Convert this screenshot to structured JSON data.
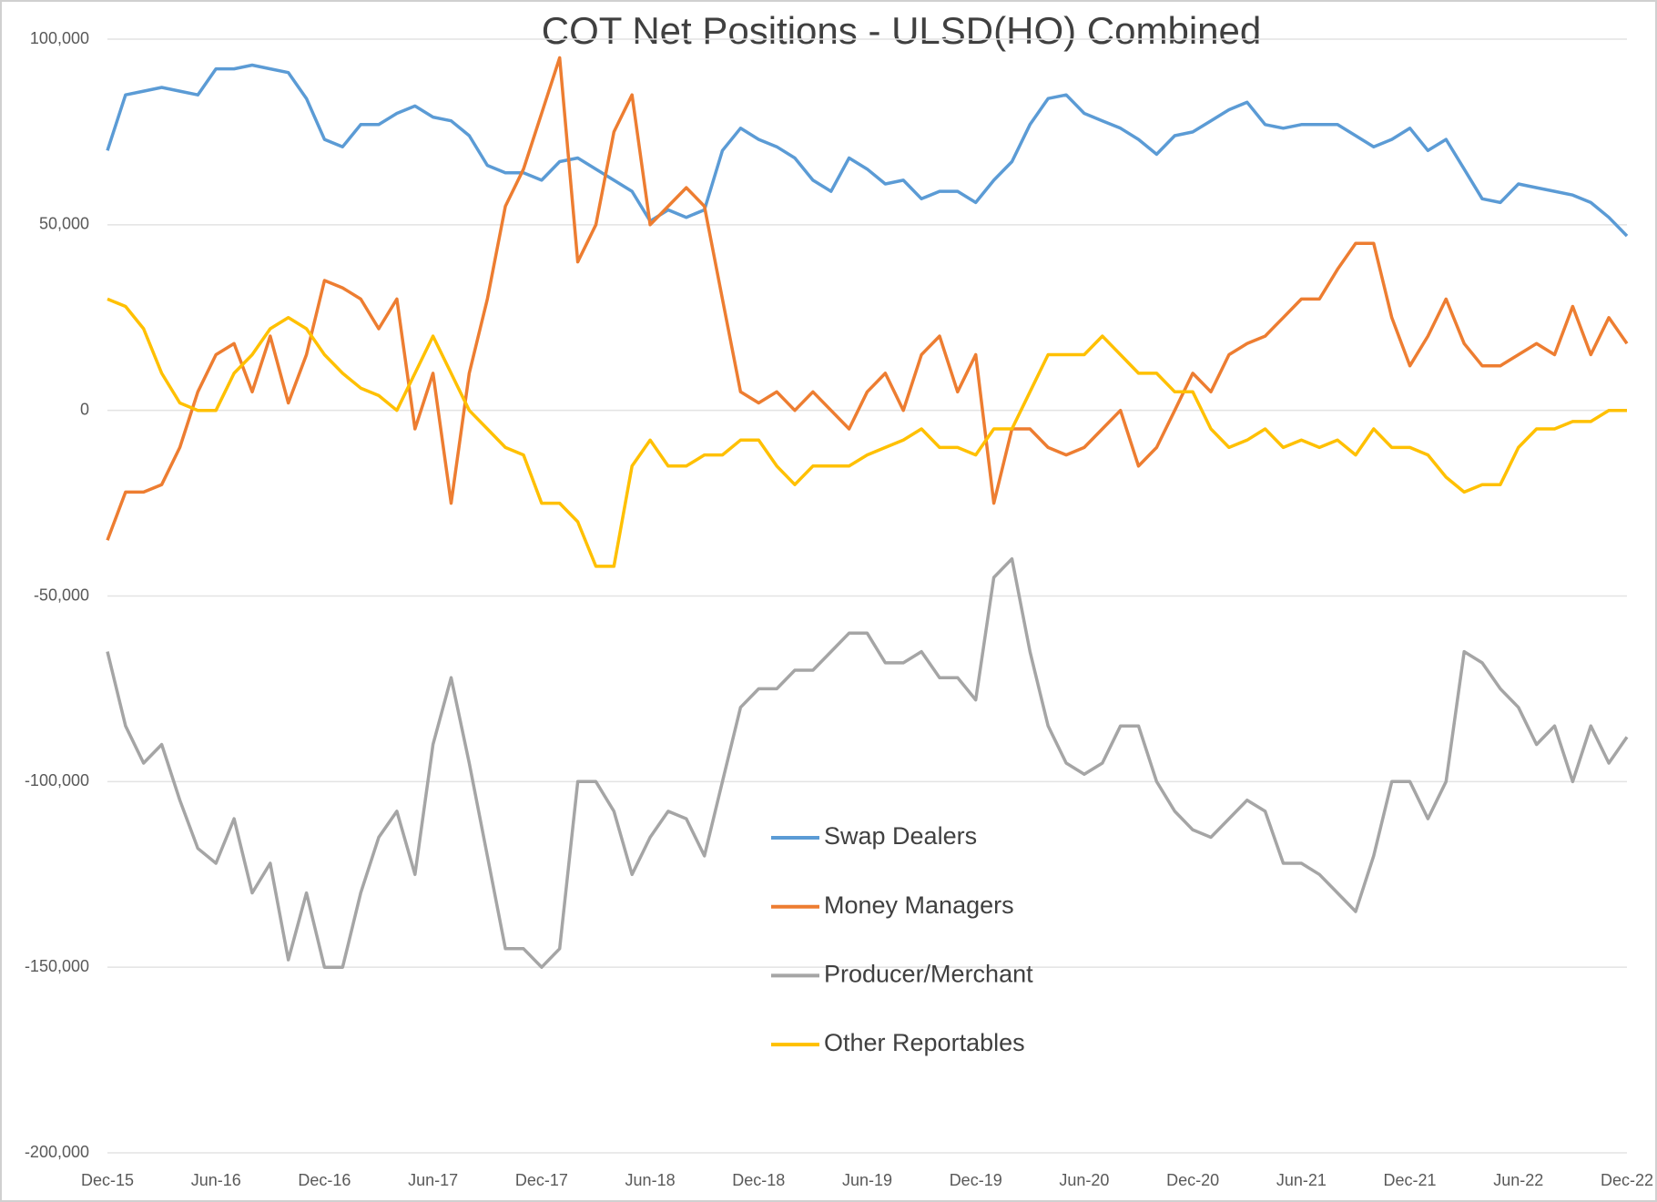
{
  "chart_data": {
    "type": "line",
    "title": "COT Net Positions - ULSD(HO) Combined",
    "categories": [
      "Dec-15",
      null,
      null,
      null,
      null,
      null,
      "Jun-16",
      null,
      null,
      null,
      null,
      null,
      "Dec-16",
      null,
      null,
      null,
      null,
      null,
      "Jun-17",
      null,
      null,
      null,
      null,
      null,
      "Dec-17",
      null,
      null,
      null,
      null,
      null,
      "Jun-18",
      null,
      null,
      null,
      null,
      null,
      "Dec-18",
      null,
      null,
      null,
      null,
      null,
      "Jun-19",
      null,
      null,
      null,
      null,
      null,
      "Dec-19",
      null,
      null,
      null,
      null,
      null,
      "Jun-20",
      null,
      null,
      null,
      null,
      null,
      "Dec-20",
      null,
      null,
      null,
      null,
      null,
      "Jun-21",
      null,
      null,
      null,
      null,
      null,
      "Dec-21",
      null,
      null,
      null,
      null,
      null,
      "Jun-22",
      null,
      null,
      null,
      null,
      null,
      "Dec-22"
    ],
    "series": [
      {
        "name": "Swap Dealers",
        "color": "#5b9bd5",
        "values": [
          70000,
          85000,
          86000,
          87000,
          86000,
          85000,
          92000,
          92000,
          93000,
          92000,
          91000,
          84000,
          73000,
          71000,
          77000,
          77000,
          80000,
          82000,
          79000,
          78000,
          74000,
          66000,
          64000,
          64000,
          62000,
          67000,
          68000,
          65000,
          62000,
          59000,
          51000,
          54000,
          52000,
          54000,
          70000,
          76000,
          73000,
          71000,
          68000,
          62000,
          59000,
          68000,
          65000,
          61000,
          62000,
          57000,
          59000,
          59000,
          56000,
          62000,
          67000,
          77000,
          84000,
          85000,
          80000,
          78000,
          76000,
          73000,
          69000,
          74000,
          75000,
          78000,
          81000,
          83000,
          77000,
          76000,
          77000,
          77000,
          77000,
          74000,
          71000,
          73000,
          76000,
          70000,
          73000,
          65000,
          57000,
          56000,
          61000,
          60000,
          59000,
          58000,
          56000,
          52000,
          47000
        ]
      },
      {
        "name": "Money Managers",
        "color": "#ed7d31",
        "values": [
          -35000,
          -22000,
          -22000,
          -20000,
          -10000,
          5000,
          15000,
          18000,
          5000,
          20000,
          2000,
          15000,
          35000,
          33000,
          30000,
          22000,
          30000,
          -5000,
          10000,
          -25000,
          10000,
          30000,
          55000,
          65000,
          80000,
          95000,
          40000,
          50000,
          75000,
          85000,
          50000,
          55000,
          60000,
          55000,
          30000,
          5000,
          2000,
          5000,
          0,
          5000,
          0,
          -5000,
          5000,
          10000,
          0,
          15000,
          20000,
          5000,
          15000,
          -25000,
          -5000,
          -5000,
          -10000,
          -12000,
          -10000,
          -5000,
          0,
          -15000,
          -10000,
          0,
          10000,
          5000,
          15000,
          18000,
          20000,
          25000,
          30000,
          30000,
          38000,
          45000,
          45000,
          25000,
          12000,
          20000,
          30000,
          18000,
          12000,
          12000,
          15000,
          18000,
          15000,
          28000,
          15000,
          25000,
          18000
        ]
      },
      {
        "name": "Producer/Merchant",
        "color": "#a5a5a5",
        "values": [
          -65000,
          -85000,
          -95000,
          -90000,
          -105000,
          -118000,
          -122000,
          -110000,
          -130000,
          -122000,
          -148000,
          -130000,
          -150000,
          -150000,
          -130000,
          -115000,
          -108000,
          -125000,
          -90000,
          -72000,
          -95000,
          -120000,
          -145000,
          -145000,
          -150000,
          -145000,
          -100000,
          -100000,
          -108000,
          -125000,
          -115000,
          -108000,
          -110000,
          -120000,
          -100000,
          -80000,
          -75000,
          -75000,
          -70000,
          -70000,
          -65000,
          -60000,
          -60000,
          -68000,
          -68000,
          -65000,
          -72000,
          -72000,
          -78000,
          -45000,
          -40000,
          -65000,
          -85000,
          -95000,
          -98000,
          -95000,
          -85000,
          -85000,
          -100000,
          -108000,
          -113000,
          -115000,
          -110000,
          -105000,
          -108000,
          -122000,
          -122000,
          -125000,
          -130000,
          -135000,
          -120000,
          -100000,
          -100000,
          -110000,
          -100000,
          -65000,
          -68000,
          -75000,
          -80000,
          -90000,
          -85000,
          -100000,
          -85000,
          -95000,
          -88000
        ]
      },
      {
        "name": "Other Reportables",
        "color": "#ffc000",
        "values": [
          30000,
          28000,
          22000,
          10000,
          2000,
          0,
          0,
          10000,
          15000,
          22000,
          25000,
          22000,
          15000,
          10000,
          6000,
          4000,
          0,
          10000,
          20000,
          10000,
          0,
          -5000,
          -10000,
          -12000,
          -25000,
          -25000,
          -30000,
          -42000,
          -42000,
          -15000,
          -8000,
          -15000,
          -15000,
          -12000,
          -12000,
          -8000,
          -8000,
          -15000,
          -20000,
          -15000,
          -15000,
          -15000,
          -12000,
          -10000,
          -8000,
          -5000,
          -10000,
          -10000,
          -12000,
          -5000,
          -5000,
          5000,
          15000,
          15000,
          15000,
          20000,
          15000,
          10000,
          10000,
          5000,
          5000,
          -5000,
          -10000,
          -8000,
          -5000,
          -10000,
          -8000,
          -10000,
          -8000,
          -12000,
          -5000,
          -10000,
          -10000,
          -12000,
          -18000,
          -22000,
          -20000,
          -20000,
          -10000,
          -5000,
          -5000,
          -3000,
          -3000,
          0,
          0
        ]
      }
    ],
    "ylim": [
      -200000,
      100000
    ],
    "yticks": [
      {
        "value": -200000,
        "label": "-200,000"
      },
      {
        "value": -150000,
        "label": "-150,000"
      },
      {
        "value": -100000,
        "label": "-100,000"
      },
      {
        "value": -50000,
        "label": "-50,000"
      },
      0,
      {
        "value": 50000,
        "label": "50,000"
      },
      {
        "value": 100000,
        "label": "100,000"
      }
    ],
    "grid": true
  }
}
